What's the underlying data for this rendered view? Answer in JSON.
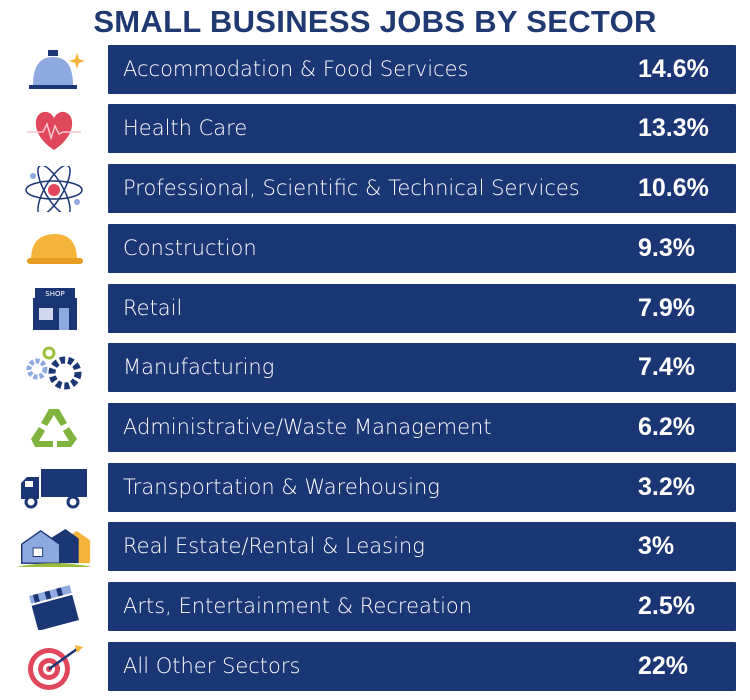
{
  "chart_data": {
    "type": "table",
    "title": "SMALL BUSINESS JOBS BY SECTOR",
    "rows": [
      {
        "sector": "Accommodation & Food Services",
        "value": "14.6%",
        "icon": "cloche-icon"
      },
      {
        "sector": "Health Care",
        "value": "13.3%",
        "icon": "heart-icon"
      },
      {
        "sector": "Professional, Scientific & Technical Services",
        "value": "10.6%",
        "icon": "atom-icon"
      },
      {
        "sector": "Construction",
        "value": "9.3%",
        "icon": "hard-hat-icon"
      },
      {
        "sector": "Retail",
        "value": "7.9%",
        "icon": "shop-icon",
        "icon_text": "SHOP"
      },
      {
        "sector": "Manufacturing",
        "value": "7.4%",
        "icon": "gears-icon"
      },
      {
        "sector": "Administrative/Waste Management",
        "value": "6.2%",
        "icon": "recycle-icon"
      },
      {
        "sector": "Transportation & Warehousing",
        "value": "3.2%",
        "icon": "truck-icon"
      },
      {
        "sector": "Real Estate/Rental & Leasing",
        "value": "3%",
        "icon": "houses-icon"
      },
      {
        "sector": "Arts, Entertainment & Recreation",
        "value": "2.5%",
        "icon": "clapperboard-icon"
      },
      {
        "sector": "All Other Sectors",
        "value": "22%",
        "icon": "target-icon"
      }
    ],
    "colors": {
      "bar": "#1b3674",
      "title": "#1f3a73",
      "text": "#ffffff"
    }
  }
}
